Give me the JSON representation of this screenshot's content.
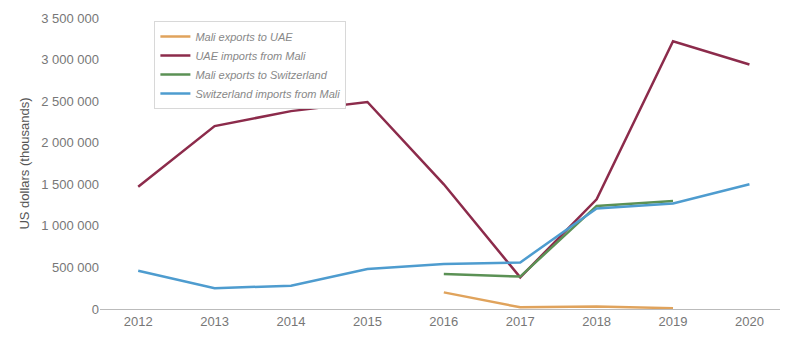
{
  "chart_data": {
    "type": "line",
    "y_label": "US dollars (thousands)",
    "x": [
      2012,
      2013,
      2014,
      2015,
      2016,
      2017,
      2018,
      2019,
      2020
    ],
    "xlim": [
      2011.5,
      2020.4
    ],
    "xticks": [
      2012,
      2013,
      2014,
      2015,
      2016,
      2017,
      2018,
      2019,
      2020
    ],
    "ylim": [
      0,
      3500000
    ],
    "yticks": [
      0,
      {
        "value": 500000,
        "label": "500 000"
      },
      {
        "value": 1000000,
        "label": "1 000 000"
      },
      {
        "value": 1500000,
        "label": "1 500 000"
      },
      {
        "value": 2000000,
        "label": "2 000 000"
      },
      {
        "value": 2500000,
        "label": "2 500 000"
      },
      {
        "value": 3000000,
        "label": "3 000 000"
      },
      {
        "value": 3500000,
        "label": "3 500 000"
      }
    ],
    "grid": false,
    "legend": "upper left",
    "series": [
      {
        "name": "Mali exports to UAE",
        "color": "#e0a35c",
        "values": [
          null,
          null,
          null,
          null,
          200000,
          20000,
          30000,
          10000,
          null
        ]
      },
      {
        "name": "UAE imports from Mali",
        "color": "#8c2b4b",
        "values": [
          1470000,
          2200000,
          2380000,
          2490000,
          1500000,
          380000,
          1320000,
          3220000,
          2940000
        ]
      },
      {
        "name": "Mali exports to Switzerland",
        "color": "#5b9155",
        "values": [
          null,
          null,
          null,
          null,
          420000,
          390000,
          1240000,
          1300000,
          null
        ]
      },
      {
        "name": "Switzerland imports from Mali",
        "color": "#4e9ccf",
        "values": [
          460000,
          250000,
          280000,
          480000,
          540000,
          560000,
          1210000,
          1270000,
          1500000
        ]
      }
    ]
  }
}
